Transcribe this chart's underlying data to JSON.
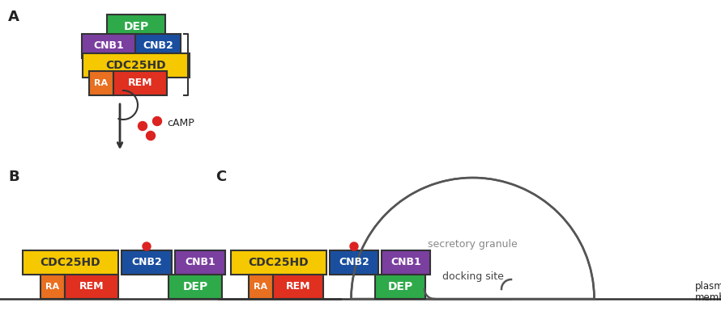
{
  "bg_color": "#ffffff",
  "colors": {
    "DEP": "#2eaa4a",
    "CNB1": "#7b3fa0",
    "CNB2": "#1a4fa0",
    "CDC25HD": "#f5c800",
    "RA": "#e87020",
    "REM": "#e03020",
    "docking": "#aaaaaa",
    "line": "#333333",
    "text_dark": "#222222",
    "text_white": "#ffffff",
    "camp_dot": "#dd2222",
    "granule_line": "#555555",
    "granule_fill": "#ffffff"
  },
  "label_A": "A",
  "label_B": "B",
  "label_C": "C",
  "camp_label": "cAMP",
  "secretory_label": "secretory granule",
  "docking_label": "docking site",
  "plasma_label1": "plasm",
  "plasma_label2": "membran"
}
